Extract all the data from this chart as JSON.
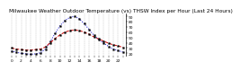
{
  "title": "Milwaukee Weather Outdoor Temperature (vs) THSW Index per Hour (Last 24 Hours)",
  "hours": [
    0,
    1,
    2,
    3,
    4,
    5,
    6,
    7,
    8,
    9,
    10,
    11,
    12,
    13,
    14,
    15,
    16,
    17,
    18,
    19,
    20,
    21,
    22,
    23
  ],
  "temp": [
    30,
    28,
    27,
    26,
    26,
    27,
    28,
    32,
    40,
    48,
    55,
    60,
    63,
    64,
    63,
    60,
    56,
    51,
    47,
    43,
    39,
    36,
    34,
    31
  ],
  "thsw": [
    24,
    22,
    20,
    19,
    18,
    19,
    21,
    28,
    42,
    58,
    72,
    82,
    88,
    90,
    85,
    76,
    65,
    54,
    46,
    39,
    33,
    28,
    25,
    22
  ],
  "temp_color": "#cc0000",
  "thsw_color": "#0000cc",
  "bg_color": "#ffffff",
  "grid_color": "#aaaaaa",
  "ylim": [
    15,
    95
  ],
  "ytick_values": [
    20,
    30,
    40,
    50,
    60,
    70,
    80,
    90
  ],
  "title_fontsize": 4.2,
  "tick_fontsize": 3.2,
  "linewidth": 0.7,
  "markersize": 1.2
}
